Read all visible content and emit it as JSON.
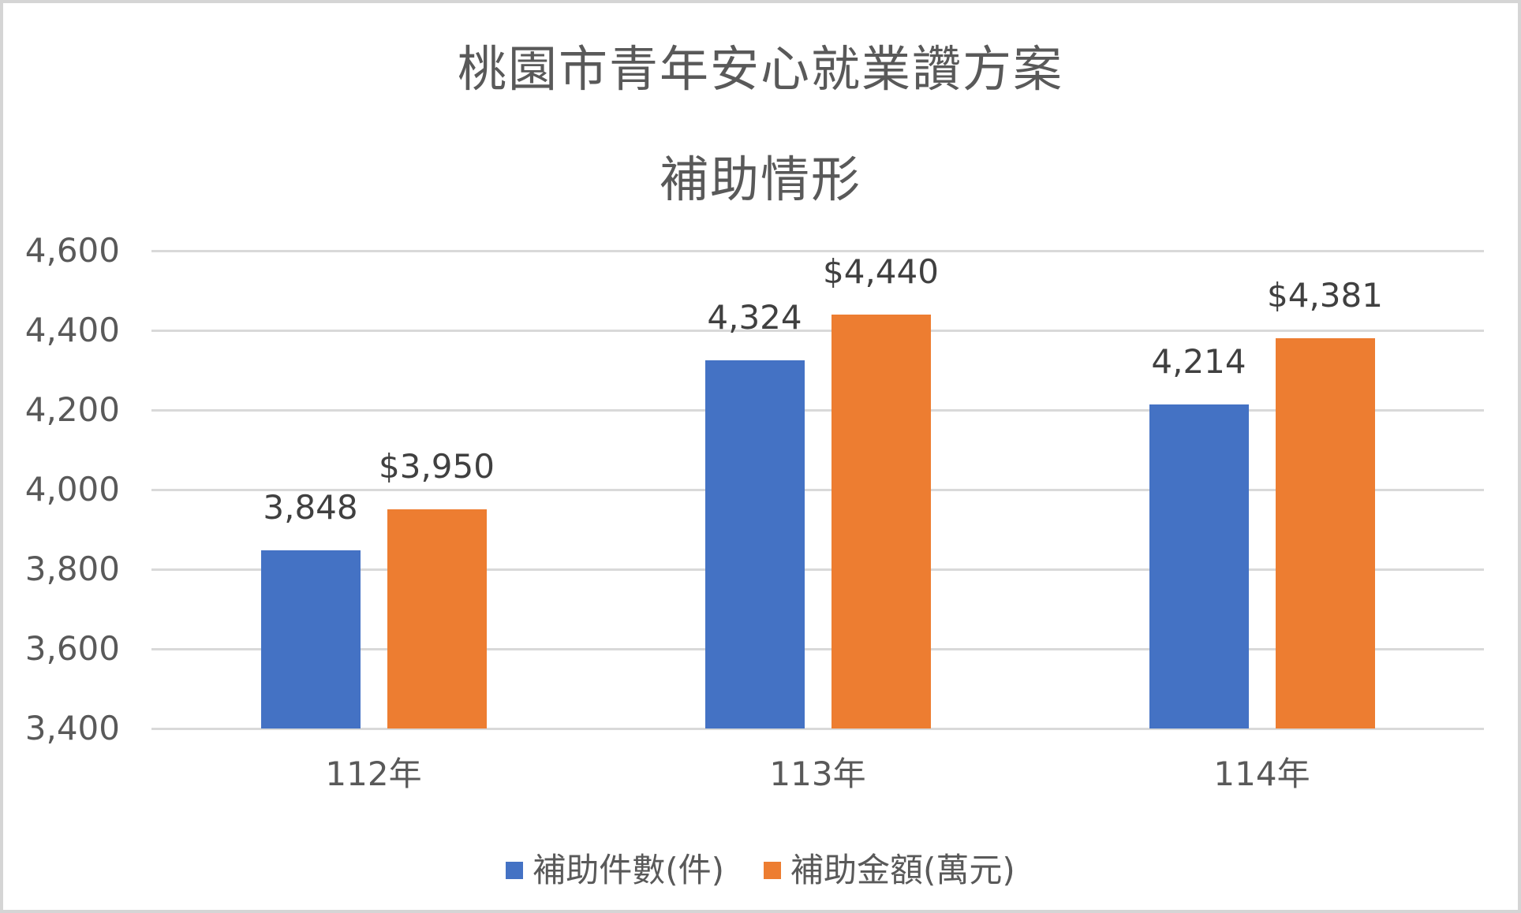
{
  "title": {
    "line1": "桃園市青年安心就業讚方案",
    "line2": "補助情形"
  },
  "colors": {
    "series_count": "#4472C4",
    "series_amount": "#ED7D31",
    "gridline": "#D9D9D9",
    "axis_text": "#595959",
    "data_label_text": "#404040",
    "title_text": "#595959",
    "frame_border": "#D5D5D5"
  },
  "chart_data": {
    "type": "bar",
    "title": "桃園市青年安心就業讚方案 補助情形",
    "categories": [
      "112年",
      "113年",
      "114年"
    ],
    "series": [
      {
        "name": "補助件數(件)",
        "color": "#4472C4",
        "values": [
          3848,
          4324,
          4214
        ],
        "labels": [
          "3,848",
          "4,324",
          "4,214"
        ]
      },
      {
        "name": "補助金額(萬元)",
        "color": "#ED7D31",
        "values": [
          3950,
          4440,
          4381
        ],
        "labels": [
          "$3,950",
          "$4,440",
          "$4,381"
        ]
      }
    ],
    "ylim": [
      3400,
      4600
    ],
    "yticks": [
      {
        "value": 3400,
        "label": "3,400"
      },
      {
        "value": 3600,
        "label": "3,600"
      },
      {
        "value": 3800,
        "label": "3,800"
      },
      {
        "value": 4000,
        "label": "4,000"
      },
      {
        "value": 4200,
        "label": "4,200"
      },
      {
        "value": 4400,
        "label": "4,400"
      },
      {
        "value": 4600,
        "label": "4,600"
      }
    ],
    "grid": true,
    "legend_position": "bottom",
    "xlabel": "",
    "ylabel": ""
  }
}
